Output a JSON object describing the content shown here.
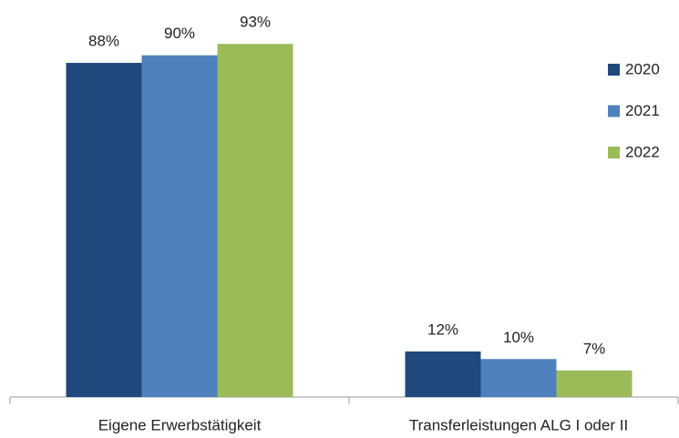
{
  "chart_data": {
    "type": "bar",
    "categories": [
      "Eigene Erwerbstätigkeit",
      "Transferleistungen ALG I oder II"
    ],
    "series": [
      {
        "name": "2020",
        "color": "#1f497d",
        "values": [
          88,
          12
        ],
        "value_labels": [
          "88%",
          "12%"
        ]
      },
      {
        "name": "2021",
        "color": "#4f81bd",
        "values": [
          90,
          10
        ],
        "value_labels": [
          "90%",
          "10%"
        ]
      },
      {
        "name": "2022",
        "color": "#9bbb59",
        "values": [
          93,
          7
        ],
        "value_labels": [
          "93%",
          "7%"
        ]
      }
    ],
    "ylim": [
      0,
      100
    ],
    "legend": "right"
  }
}
